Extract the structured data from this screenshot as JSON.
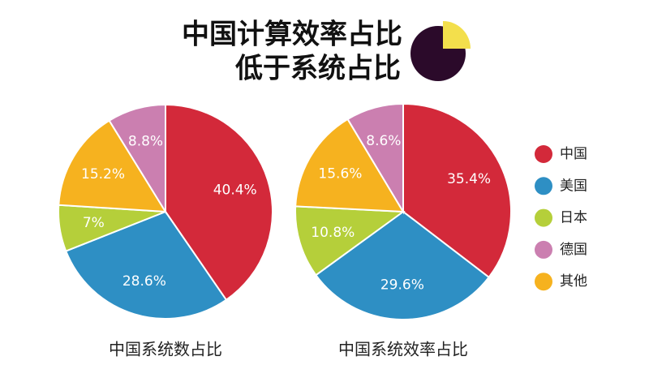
{
  "header": {
    "title_lines": [
      "中国计算效率占比",
      "低于系统占比"
    ]
  },
  "legend": {
    "labels": [
      "中国",
      "美国",
      "日本",
      "德国",
      "其他"
    ],
    "colors": [
      "#d3293a",
      "#2e8fc4",
      "#b5cf3a",
      "#cb7fb0",
      "#f6b21f"
    ]
  },
  "chart_data": [
    {
      "type": "pie",
      "title": "中国系统数占比",
      "categories": [
        "中国",
        "美国",
        "日本",
        "其他",
        "德国"
      ],
      "colors": [
        "#d3293a",
        "#2e8fc4",
        "#b5cf3a",
        "#f6b21f",
        "#cb7fb0"
      ],
      "values": [
        40.4,
        28.6,
        7,
        15.2,
        8.8
      ],
      "value_labels": [
        "40.4%",
        "28.6%",
        "7%",
        "15.2%",
        "8.8%"
      ]
    },
    {
      "type": "pie",
      "title": "中国系统效率占比",
      "categories": [
        "中国",
        "美国",
        "日本",
        "其他",
        "德国"
      ],
      "colors": [
        "#d3293a",
        "#2e8fc4",
        "#b5cf3a",
        "#f6b21f",
        "#cb7fb0"
      ],
      "values": [
        35.4,
        29.6,
        10.8,
        15.6,
        8.6
      ],
      "value_labels": [
        "35.4%",
        "29.6%",
        "10.8%",
        "15.6%",
        "8.6%"
      ]
    }
  ]
}
